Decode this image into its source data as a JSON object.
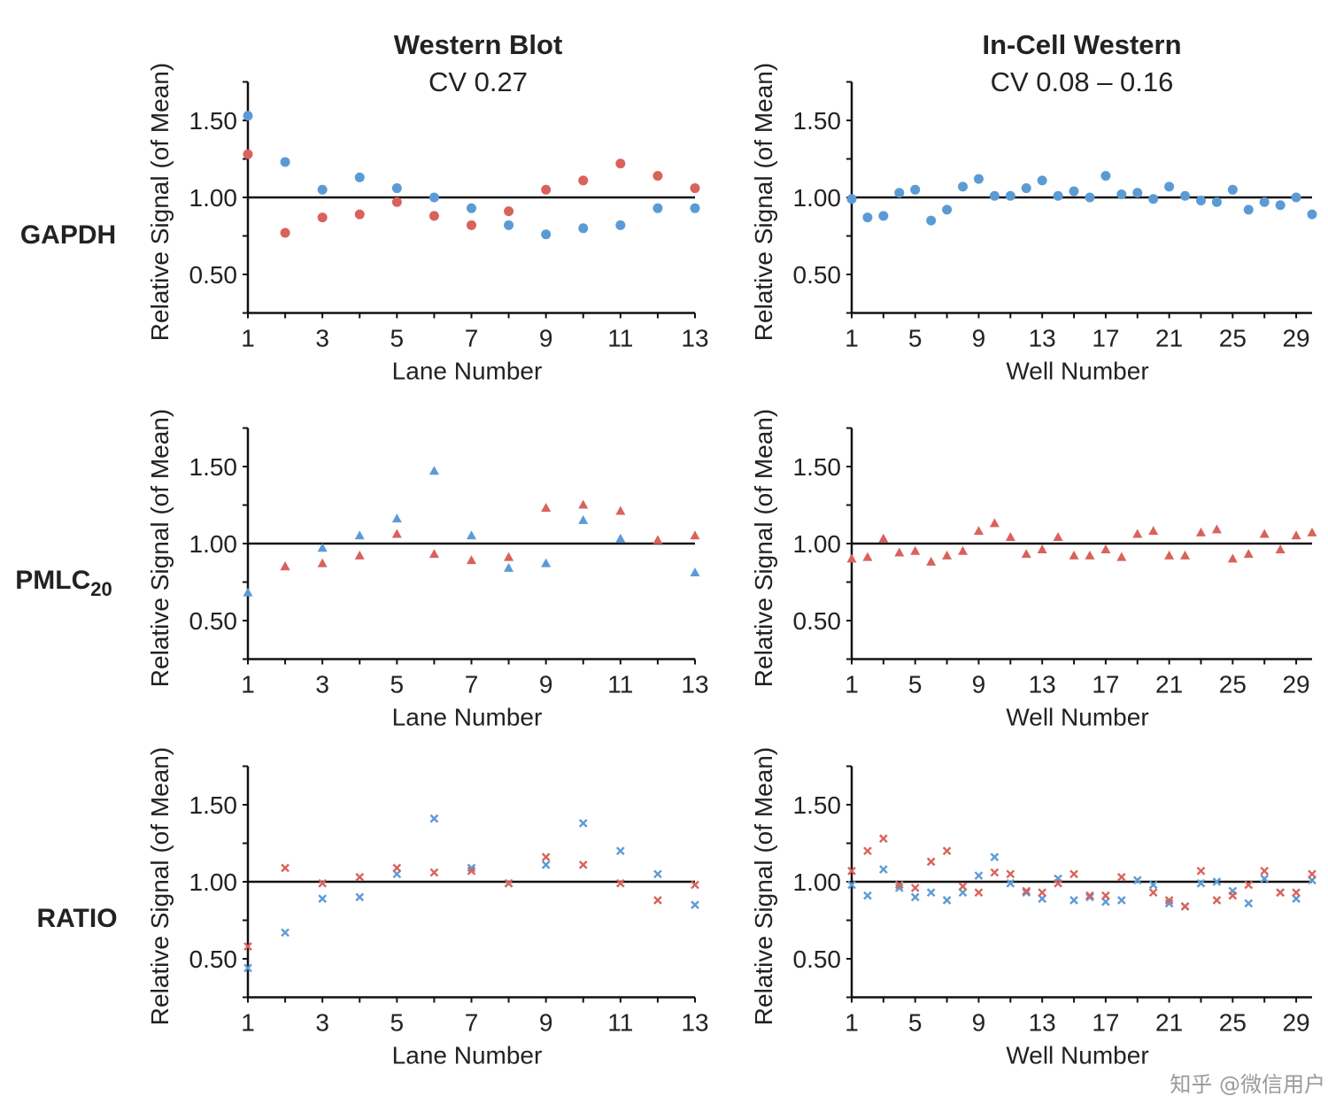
{
  "columns": [
    {
      "title": "Western Blot",
      "subtitle": "CV 0.27"
    },
    {
      "title": "In-Cell Western",
      "subtitle": "CV 0.08 – 0.16"
    }
  ],
  "rows": [
    {
      "label": "GAPDH",
      "sub": ""
    },
    {
      "label": "PMLC",
      "sub": "20"
    },
    {
      "label": "RATIO",
      "sub": ""
    }
  ],
  "watermark": "知乎 @微信用户",
  "colors": {
    "blue": "#5b9bd5",
    "red": "#d9625b",
    "axis": "#111111"
  },
  "chart_data": [
    {
      "type": "scatter",
      "row": 0,
      "col": 0,
      "marker": "circle",
      "xlabel": "Lane Number",
      "ylabel": "Relative Signal (of Mean)",
      "xlim": [
        1,
        13
      ],
      "xticks": [
        1,
        3,
        5,
        7,
        9,
        11,
        13
      ],
      "ylim": [
        0.25,
        1.75
      ],
      "yticks": [
        "0.50",
        "1.00",
        "1.50"
      ],
      "reference_line": 1.0,
      "x": [
        1,
        2,
        3,
        4,
        5,
        6,
        7,
        8,
        9,
        10,
        11,
        12,
        13
      ],
      "series": [
        {
          "color": "#5b9bd5",
          "values": [
            1.53,
            1.23,
            1.05,
            1.13,
            1.06,
            1.0,
            0.93,
            0.82,
            0.76,
            0.8,
            0.82,
            0.93,
            0.93
          ]
        },
        {
          "color": "#d9625b",
          "values": [
            1.28,
            0.77,
            0.87,
            0.89,
            0.97,
            0.88,
            0.82,
            0.91,
            1.05,
            1.11,
            1.22,
            1.14,
            1.06
          ]
        }
      ]
    },
    {
      "type": "scatter",
      "row": 0,
      "col": 1,
      "marker": "circle",
      "xlabel": "Well Number",
      "ylabel": "Relative Signal (of Mean)",
      "xlim": [
        1,
        30
      ],
      "xticks": [
        1,
        5,
        9,
        13,
        17,
        21,
        25,
        29
      ],
      "ylim": [
        0.25,
        1.75
      ],
      "yticks": [
        "0.50",
        "1.00",
        "1.50"
      ],
      "reference_line": 1.0,
      "x": [
        1,
        2,
        3,
        4,
        5,
        6,
        7,
        8,
        9,
        10,
        11,
        12,
        13,
        14,
        15,
        16,
        17,
        18,
        19,
        20,
        21,
        22,
        23,
        24,
        25,
        26,
        27,
        28,
        29,
        30
      ],
      "series": [
        {
          "color": "#5b9bd5",
          "values": [
            0.99,
            0.87,
            0.88,
            1.03,
            1.05,
            0.85,
            0.92,
            1.07,
            1.12,
            1.01,
            1.01,
            1.06,
            1.11,
            1.01,
            1.04,
            1.0,
            1.14,
            1.02,
            1.03,
            0.99,
            1.07,
            1.01,
            0.98,
            0.97,
            1.05,
            0.92,
            0.97,
            0.95,
            1.0,
            0.89
          ]
        }
      ]
    },
    {
      "type": "scatter",
      "row": 1,
      "col": 0,
      "marker": "triangle",
      "xlabel": "Lane Number",
      "ylabel": "Relative Signal (of Mean)",
      "xlim": [
        1,
        13
      ],
      "xticks": [
        1,
        3,
        5,
        7,
        9,
        11,
        13
      ],
      "ylim": [
        0.25,
        1.75
      ],
      "yticks": [
        "0.50",
        "1.00",
        "1.50"
      ],
      "reference_line": 1.0,
      "x": [
        1,
        2,
        3,
        4,
        5,
        6,
        7,
        8,
        9,
        10,
        11,
        12,
        13
      ],
      "series": [
        {
          "color": "#5b9bd5",
          "values": [
            0.68,
            0.85,
            0.97,
            1.05,
            1.16,
            1.47,
            1.05,
            0.84,
            0.87,
            1.15,
            1.03,
            1.02,
            0.81
          ]
        },
        {
          "color": "#d9625b",
          "values": [
            null,
            0.85,
            0.87,
            0.92,
            1.06,
            0.93,
            0.89,
            0.91,
            1.23,
            1.25,
            1.21,
            1.02,
            1.05
          ]
        }
      ]
    },
    {
      "type": "scatter",
      "row": 1,
      "col": 1,
      "marker": "triangle",
      "xlabel": "Well Number",
      "ylabel": "Relative Signal (of Mean)",
      "xlim": [
        1,
        30
      ],
      "xticks": [
        1,
        5,
        9,
        13,
        17,
        21,
        25,
        29
      ],
      "ylim": [
        0.25,
        1.75
      ],
      "yticks": [
        "0.50",
        "1.00",
        "1.50"
      ],
      "reference_line": 1.0,
      "x": [
        1,
        2,
        3,
        4,
        5,
        6,
        7,
        8,
        9,
        10,
        11,
        12,
        13,
        14,
        15,
        16,
        17,
        18,
        19,
        20,
        21,
        22,
        23,
        24,
        25,
        26,
        27,
        28,
        29,
        30
      ],
      "series": [
        {
          "color": "#d9625b",
          "values": [
            0.9,
            0.91,
            1.03,
            0.94,
            0.95,
            0.88,
            0.92,
            0.95,
            1.08,
            1.13,
            1.04,
            0.93,
            0.96,
            1.04,
            0.92,
            0.92,
            0.96,
            0.91,
            1.06,
            1.08,
            0.92,
            0.92,
            1.07,
            1.09,
            0.9,
            0.93,
            1.06,
            0.96,
            1.05,
            1.07
          ]
        }
      ]
    },
    {
      "type": "scatter",
      "row": 2,
      "col": 0,
      "marker": "cross",
      "xlabel": "Lane Number",
      "ylabel": "Relative Signal (of Mean)",
      "xlim": [
        1,
        13
      ],
      "xticks": [
        1,
        3,
        5,
        7,
        9,
        11,
        13
      ],
      "ylim": [
        0.25,
        1.75
      ],
      "yticks": [
        "0.50",
        "1.00",
        "1.50"
      ],
      "reference_line": 1.0,
      "x": [
        1,
        2,
        3,
        4,
        5,
        6,
        7,
        8,
        9,
        10,
        11,
        12,
        13
      ],
      "series": [
        {
          "color": "#5b9bd5",
          "values": [
            0.44,
            0.67,
            0.89,
            0.9,
            1.05,
            1.41,
            1.09,
            0.99,
            1.11,
            1.38,
            1.2,
            1.05,
            0.85
          ]
        },
        {
          "color": "#d9625b",
          "values": [
            0.58,
            1.09,
            0.99,
            1.03,
            1.09,
            1.06,
            1.07,
            0.99,
            1.16,
            1.11,
            0.99,
            0.88,
            0.98
          ]
        }
      ]
    },
    {
      "type": "scatter",
      "row": 2,
      "col": 1,
      "marker": "cross",
      "xlabel": "Well Number",
      "ylabel": "Relative Signal (of Mean)",
      "xlim": [
        1,
        30
      ],
      "xticks": [
        1,
        5,
        9,
        13,
        17,
        21,
        25,
        29
      ],
      "ylim": [
        0.25,
        1.75
      ],
      "yticks": [
        "0.50",
        "1.00",
        "1.50"
      ],
      "reference_line": 1.0,
      "x": [
        1,
        2,
        3,
        4,
        5,
        6,
        7,
        8,
        9,
        10,
        11,
        12,
        13,
        14,
        15,
        16,
        17,
        18,
        19,
        20,
        21,
        22,
        23,
        24,
        25,
        26,
        27,
        28,
        29,
        30
      ],
      "series": [
        {
          "color": "#5b9bd5",
          "values": [
            0.98,
            0.91,
            1.08,
            0.96,
            0.9,
            0.93,
            0.88,
            0.93,
            1.04,
            1.16,
            0.99,
            0.93,
            0.89,
            1.02,
            0.88,
            0.9,
            0.87,
            0.88,
            1.01,
            0.98,
            0.86,
            0.84,
            0.99,
            1.0,
            0.94,
            0.86,
            1.02,
            0.93,
            0.89,
            1.01
          ]
        },
        {
          "color": "#d9625b",
          "values": [
            1.07,
            1.2,
            1.28,
            0.98,
            0.96,
            1.13,
            1.2,
            0.97,
            0.93,
            1.06,
            1.05,
            0.94,
            0.93,
            0.99,
            1.05,
            0.91,
            0.91,
            1.03,
            null,
            0.93,
            0.88,
            0.84,
            1.07,
            0.88,
            0.91,
            0.98,
            1.07,
            0.93,
            0.93,
            1.05
          ]
        }
      ]
    }
  ]
}
